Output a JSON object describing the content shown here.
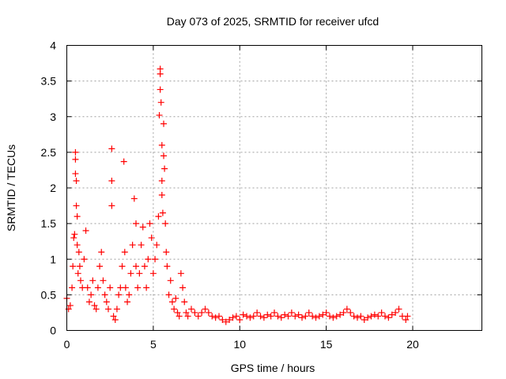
{
  "chart_data": {
    "type": "scatter",
    "title": "Day 073 of 2025, SRMTID for receiver ufcd",
    "xlabel": "GPS time / hours",
    "ylabel": "SRMTID / TECUs",
    "xlim": [
      0,
      24
    ],
    "ylim": [
      0,
      4
    ],
    "xticks": [
      0,
      5,
      10,
      15,
      20
    ],
    "xtick_labels": [
      "0",
      "5",
      "10",
      "15",
      "20"
    ],
    "yticks": [
      0,
      0.5,
      1,
      1.5,
      2,
      2.5,
      3,
      3.5,
      4
    ],
    "ytick_labels": [
      "0",
      "0.5",
      "1",
      "1.5",
      "2",
      "2.5",
      "3",
      "3.5",
      "4"
    ],
    "grid": true,
    "marker": "+",
    "color": "#ff0000",
    "series": [
      {
        "name": "SRMTID",
        "x": [
          0.0,
          0.1,
          0.2,
          0.3,
          0.35,
          0.4,
          0.45,
          0.5,
          0.5,
          0.5,
          0.55,
          0.55,
          0.6,
          0.6,
          0.65,
          0.7,
          0.75,
          0.8,
          0.9,
          1.0,
          1.1,
          1.2,
          1.3,
          1.4,
          1.5,
          1.6,
          1.7,
          1.8,
          1.9,
          2.0,
          2.1,
          2.2,
          2.3,
          2.4,
          2.5,
          2.6,
          2.6,
          2.6,
          2.7,
          2.8,
          2.9,
          3.0,
          3.1,
          3.2,
          3.3,
          3.35,
          3.4,
          3.5,
          3.6,
          3.7,
          3.8,
          3.9,
          4.0,
          4.0,
          4.1,
          4.2,
          4.3,
          4.4,
          4.5,
          4.6,
          4.7,
          4.8,
          4.9,
          5.0,
          5.1,
          5.2,
          5.3,
          5.35,
          5.4,
          5.4,
          5.4,
          5.45,
          5.5,
          5.5,
          5.5,
          5.55,
          5.6,
          5.6,
          5.65,
          5.7,
          5.75,
          5.8,
          5.9,
          6.0,
          6.1,
          6.2,
          6.3,
          6.4,
          6.5,
          6.6,
          6.7,
          6.8,
          6.9,
          7.0,
          7.2,
          7.4,
          7.6,
          7.8,
          8.0,
          8.2,
          8.4,
          8.6,
          8.8,
          9.0,
          9.2,
          9.4,
          9.6,
          9.8,
          10.0,
          10.2,
          10.4,
          10.6,
          10.8,
          11.0,
          11.2,
          11.4,
          11.6,
          11.8,
          12.0,
          12.2,
          12.4,
          12.6,
          12.8,
          13.0,
          13.2,
          13.4,
          13.6,
          13.8,
          14.0,
          14.2,
          14.4,
          14.6,
          14.8,
          15.0,
          15.2,
          15.4,
          15.6,
          15.8,
          16.0,
          16.2,
          16.4,
          16.6,
          16.8,
          17.0,
          17.2,
          17.4,
          17.6,
          17.8,
          18.0,
          18.2,
          18.4,
          18.6,
          18.8,
          19.0,
          19.2,
          19.4,
          19.6,
          19.7
        ],
        "y": [
          0.45,
          0.3,
          0.35,
          0.6,
          0.9,
          1.3,
          1.35,
          2.5,
          2.4,
          2.2,
          2.1,
          1.75,
          1.6,
          1.2,
          0.8,
          1.1,
          0.9,
          0.7,
          0.6,
          1.0,
          1.4,
          0.6,
          0.4,
          0.5,
          0.7,
          0.35,
          0.3,
          0.6,
          0.9,
          1.1,
          0.7,
          0.5,
          0.4,
          0.3,
          0.6,
          2.55,
          2.1,
          1.75,
          0.2,
          0.15,
          0.3,
          0.5,
          0.6,
          0.9,
          2.37,
          1.1,
          0.6,
          0.4,
          0.5,
          0.8,
          1.2,
          1.85,
          1.5,
          0.9,
          0.6,
          0.8,
          1.2,
          1.45,
          0.9,
          0.6,
          1.0,
          1.5,
          1.3,
          0.8,
          1.0,
          1.2,
          1.6,
          3.02,
          3.67,
          3.6,
          3.38,
          3.2,
          2.6,
          2.1,
          1.9,
          1.65,
          2.9,
          2.45,
          2.27,
          1.5,
          1.1,
          0.9,
          0.5,
          0.7,
          0.4,
          0.3,
          0.45,
          0.25,
          0.2,
          0.8,
          0.6,
          0.4,
          0.25,
          0.2,
          0.3,
          0.25,
          0.2,
          0.25,
          0.3,
          0.25,
          0.2,
          0.18,
          0.2,
          0.15,
          0.12,
          0.15,
          0.18,
          0.2,
          0.15,
          0.22,
          0.2,
          0.18,
          0.2,
          0.25,
          0.2,
          0.18,
          0.22,
          0.2,
          0.25,
          0.2,
          0.18,
          0.22,
          0.2,
          0.25,
          0.2,
          0.22,
          0.18,
          0.2,
          0.25,
          0.2,
          0.18,
          0.2,
          0.22,
          0.25,
          0.2,
          0.18,
          0.2,
          0.22,
          0.25,
          0.3,
          0.25,
          0.2,
          0.18,
          0.2,
          0.15,
          0.18,
          0.2,
          0.22,
          0.2,
          0.25,
          0.2,
          0.18,
          0.22,
          0.25,
          0.3,
          0.2,
          0.15,
          0.2
        ]
      }
    ]
  }
}
